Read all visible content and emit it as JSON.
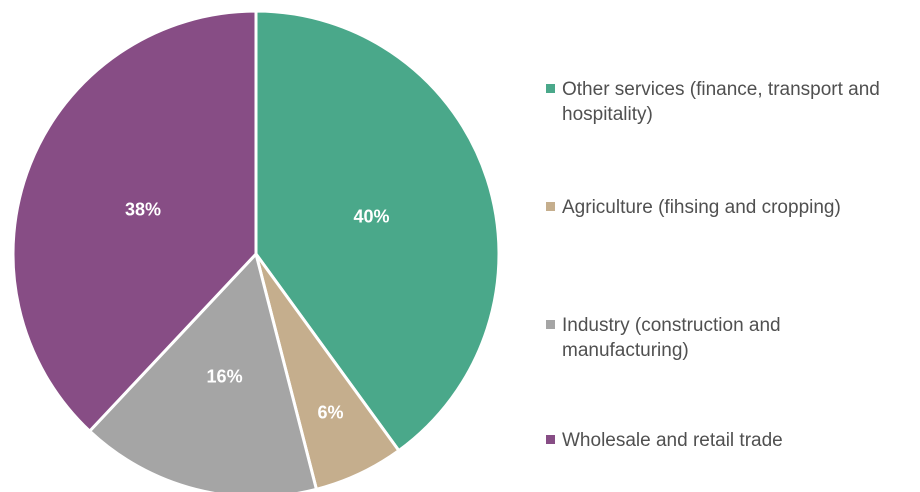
{
  "chart_data": {
    "type": "pie",
    "start_angle_deg": 0,
    "direction": "clockwise",
    "legend_position": "right",
    "slices": [
      {
        "label": "Other services (finance, transport and hospitality)",
        "value": 40,
        "value_label": "40%",
        "color": "#4aa88a"
      },
      {
        "label": "Agriculture (fihsing and cropping)",
        "value": 6,
        "value_label": "6%",
        "color": "#c5ae8d"
      },
      {
        "label": "Industry (construction and manufacturing)",
        "value": 16,
        "value_label": "16%",
        "color": "#a5a5a5"
      },
      {
        "label": "Wholesale and retail trade",
        "value": 38,
        "value_label": "38%",
        "color": "#874d85"
      }
    ]
  }
}
